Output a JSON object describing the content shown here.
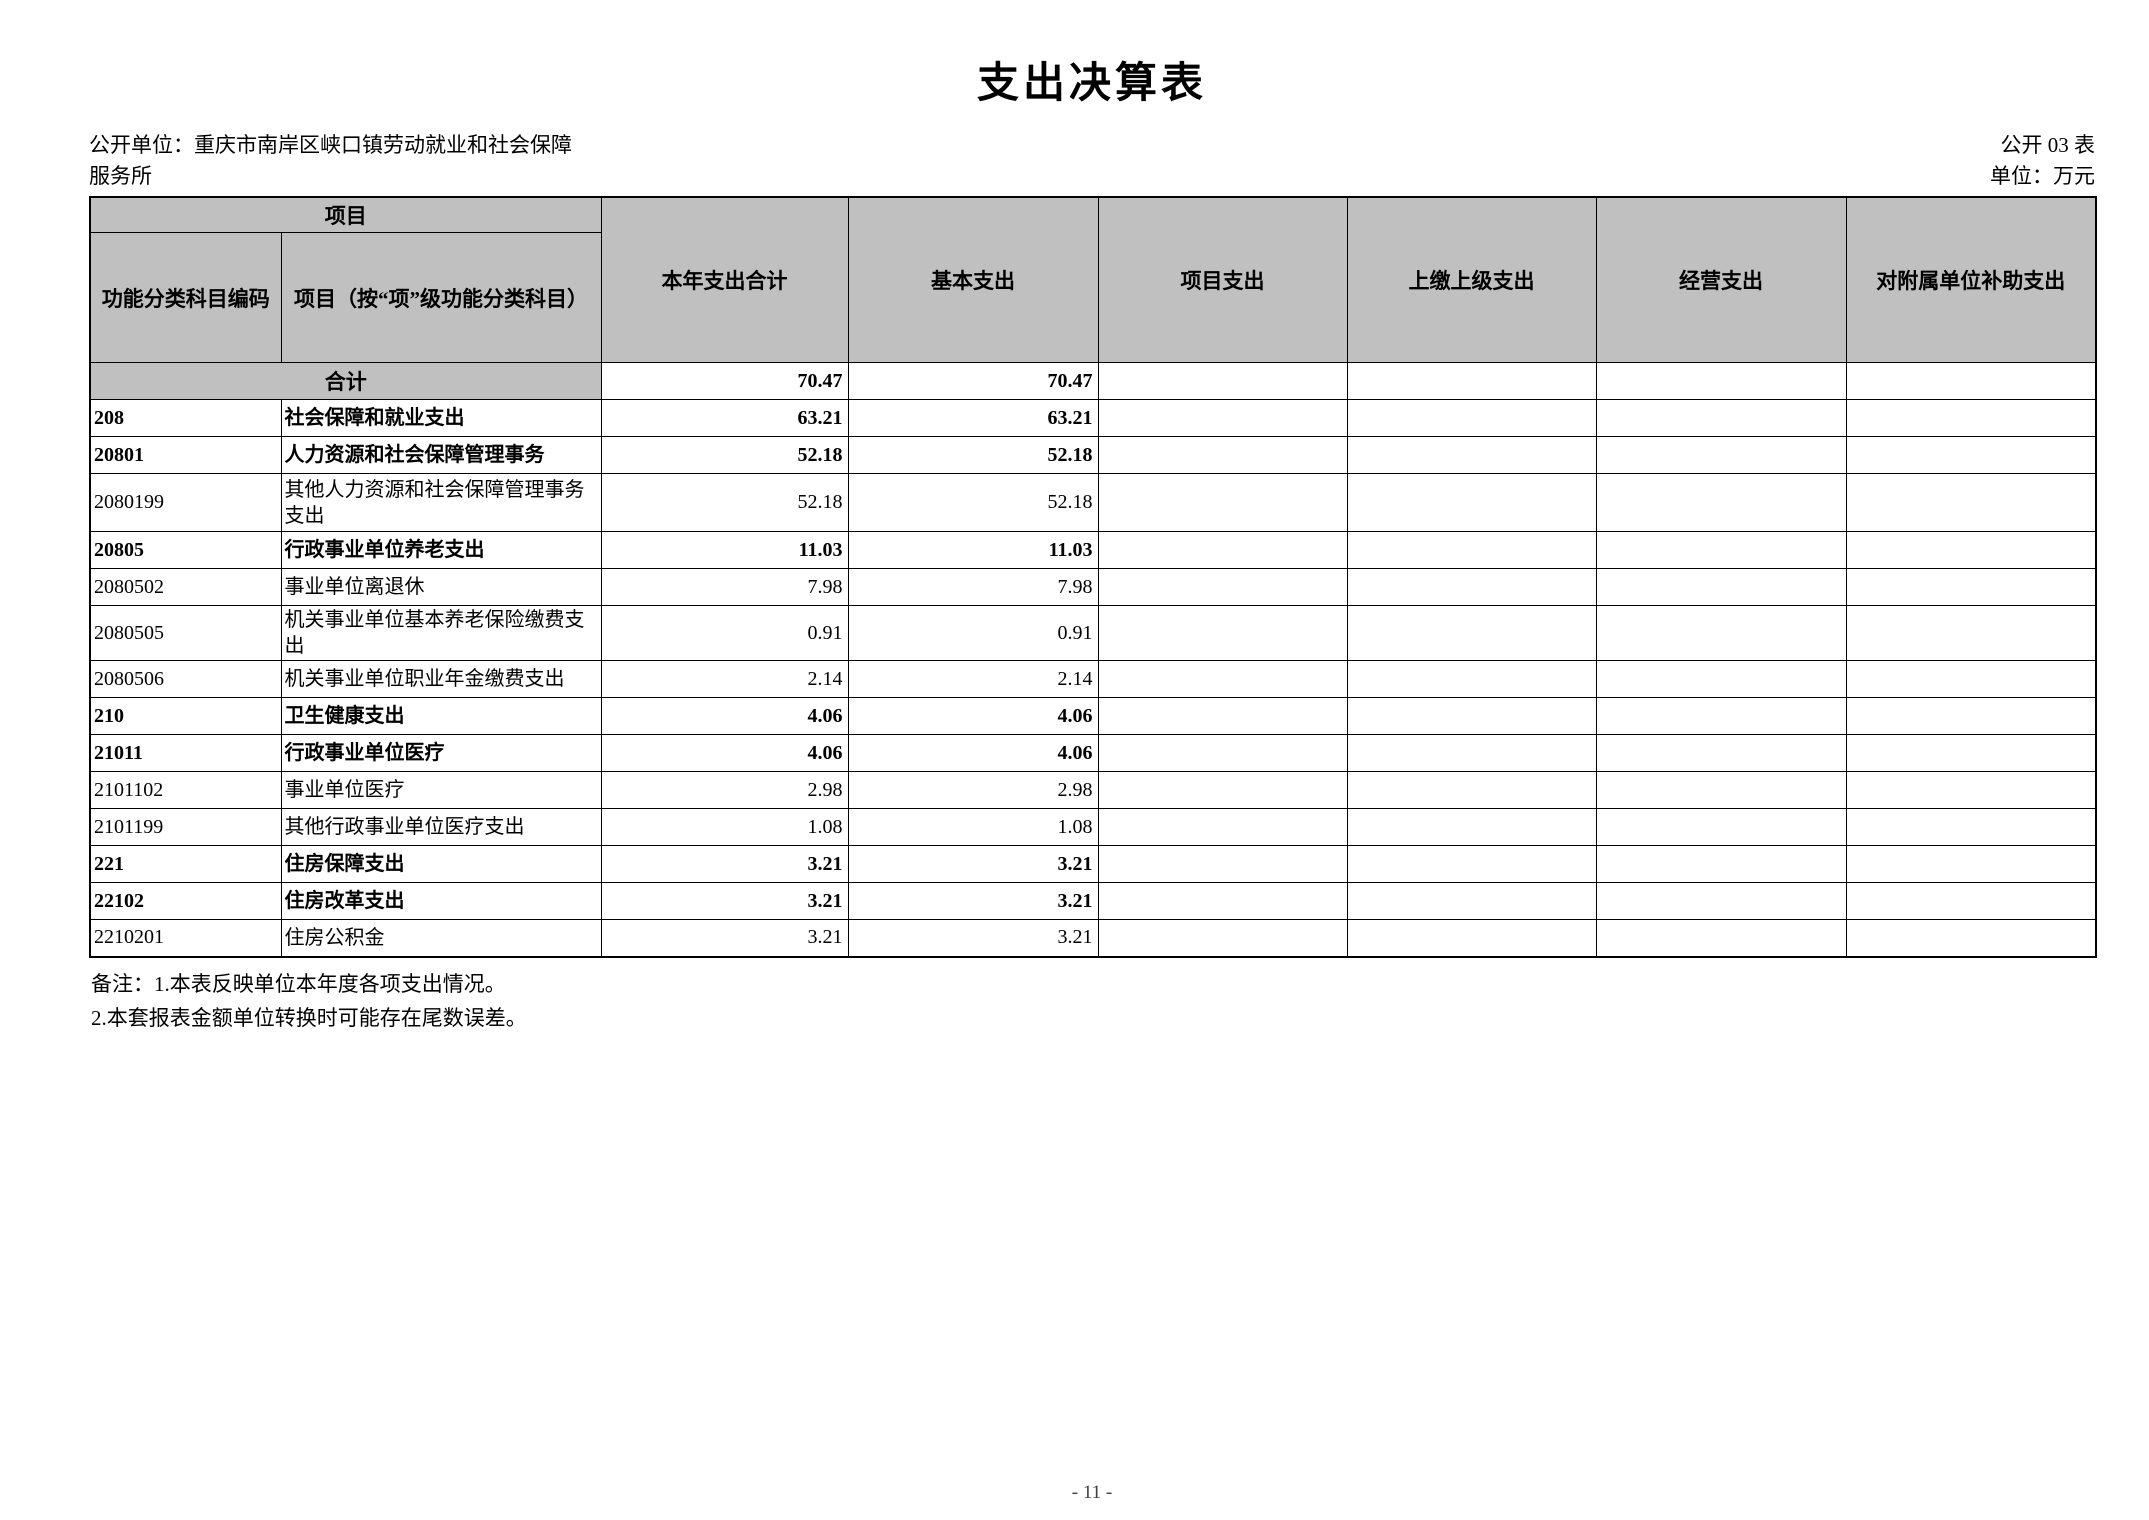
{
  "page": {
    "title": "支出决算表",
    "unit_line1": "公开单位：重庆市南岸区峡口镇劳动就业和社会保障",
    "unit_line2": "服务所",
    "table_code": "公开 03 表",
    "unit_label": "单位：万元",
    "page_number": "- 11 -"
  },
  "table": {
    "header": {
      "group_item": "项目",
      "col_code": "功能分类科目编码",
      "col_item": "项目（按“项”级功能分类科目）",
      "cols": [
        "本年支出合计",
        "基本支出",
        "项目支出",
        "上缴上级支出",
        "经营支出",
        "对附属单位补助支出"
      ]
    },
    "total_row": {
      "label": "合计",
      "values": [
        "70.47",
        "70.47",
        "",
        "",
        "",
        ""
      ]
    },
    "rows": [
      {
        "code": "208",
        "item": "社会保障和就业支出",
        "bold": true,
        "tall": false,
        "values": [
          "63.21",
          "63.21",
          "",
          "",
          "",
          ""
        ]
      },
      {
        "code": "20801",
        "item": "人力资源和社会保障管理事务",
        "bold": true,
        "tall": false,
        "values": [
          "52.18",
          "52.18",
          "",
          "",
          "",
          ""
        ]
      },
      {
        "code": "2080199",
        "item": "其他人力资源和社会保障管理事务支出",
        "bold": false,
        "tall": true,
        "values": [
          "52.18",
          "52.18",
          "",
          "",
          "",
          ""
        ]
      },
      {
        "code": "20805",
        "item": "行政事业单位养老支出",
        "bold": true,
        "tall": false,
        "values": [
          "11.03",
          "11.03",
          "",
          "",
          "",
          ""
        ]
      },
      {
        "code": "2080502",
        "item": "事业单位离退休",
        "bold": false,
        "tall": false,
        "values": [
          "7.98",
          "7.98",
          "",
          "",
          "",
          ""
        ]
      },
      {
        "code": "2080505",
        "item": "机关事业单位基本养老保险缴费支出",
        "bold": false,
        "tall": false,
        "values": [
          "0.91",
          "0.91",
          "",
          "",
          "",
          ""
        ]
      },
      {
        "code": "2080506",
        "item": "机关事业单位职业年金缴费支出",
        "bold": false,
        "tall": false,
        "values": [
          "2.14",
          "2.14",
          "",
          "",
          "",
          ""
        ]
      },
      {
        "code": "210",
        "item": "卫生健康支出",
        "bold": true,
        "tall": false,
        "values": [
          "4.06",
          "4.06",
          "",
          "",
          "",
          ""
        ]
      },
      {
        "code": "21011",
        "item": "行政事业单位医疗",
        "bold": true,
        "tall": false,
        "values": [
          "4.06",
          "4.06",
          "",
          "",
          "",
          ""
        ]
      },
      {
        "code": "2101102",
        "item": "事业单位医疗",
        "bold": false,
        "tall": false,
        "values": [
          "2.98",
          "2.98",
          "",
          "",
          "",
          ""
        ]
      },
      {
        "code": "2101199",
        "item": "其他行政事业单位医疗支出",
        "bold": false,
        "tall": false,
        "values": [
          "1.08",
          "1.08",
          "",
          "",
          "",
          ""
        ]
      },
      {
        "code": "221",
        "item": "住房保障支出",
        "bold": true,
        "tall": false,
        "values": [
          "3.21",
          "3.21",
          "",
          "",
          "",
          ""
        ]
      },
      {
        "code": "22102",
        "item": "住房改革支出",
        "bold": true,
        "tall": false,
        "values": [
          "3.21",
          "3.21",
          "",
          "",
          "",
          ""
        ]
      },
      {
        "code": "2210201",
        "item": "住房公积金",
        "bold": false,
        "tall": false,
        "values": [
          "3.21",
          "3.21",
          "",
          "",
          "",
          ""
        ]
      }
    ]
  },
  "notes": {
    "line1": "备注：1.本表反映单位本年度各项支出情况。",
    "line2": "2.本套报表金额单位转换时可能存在尾数误差。"
  }
}
